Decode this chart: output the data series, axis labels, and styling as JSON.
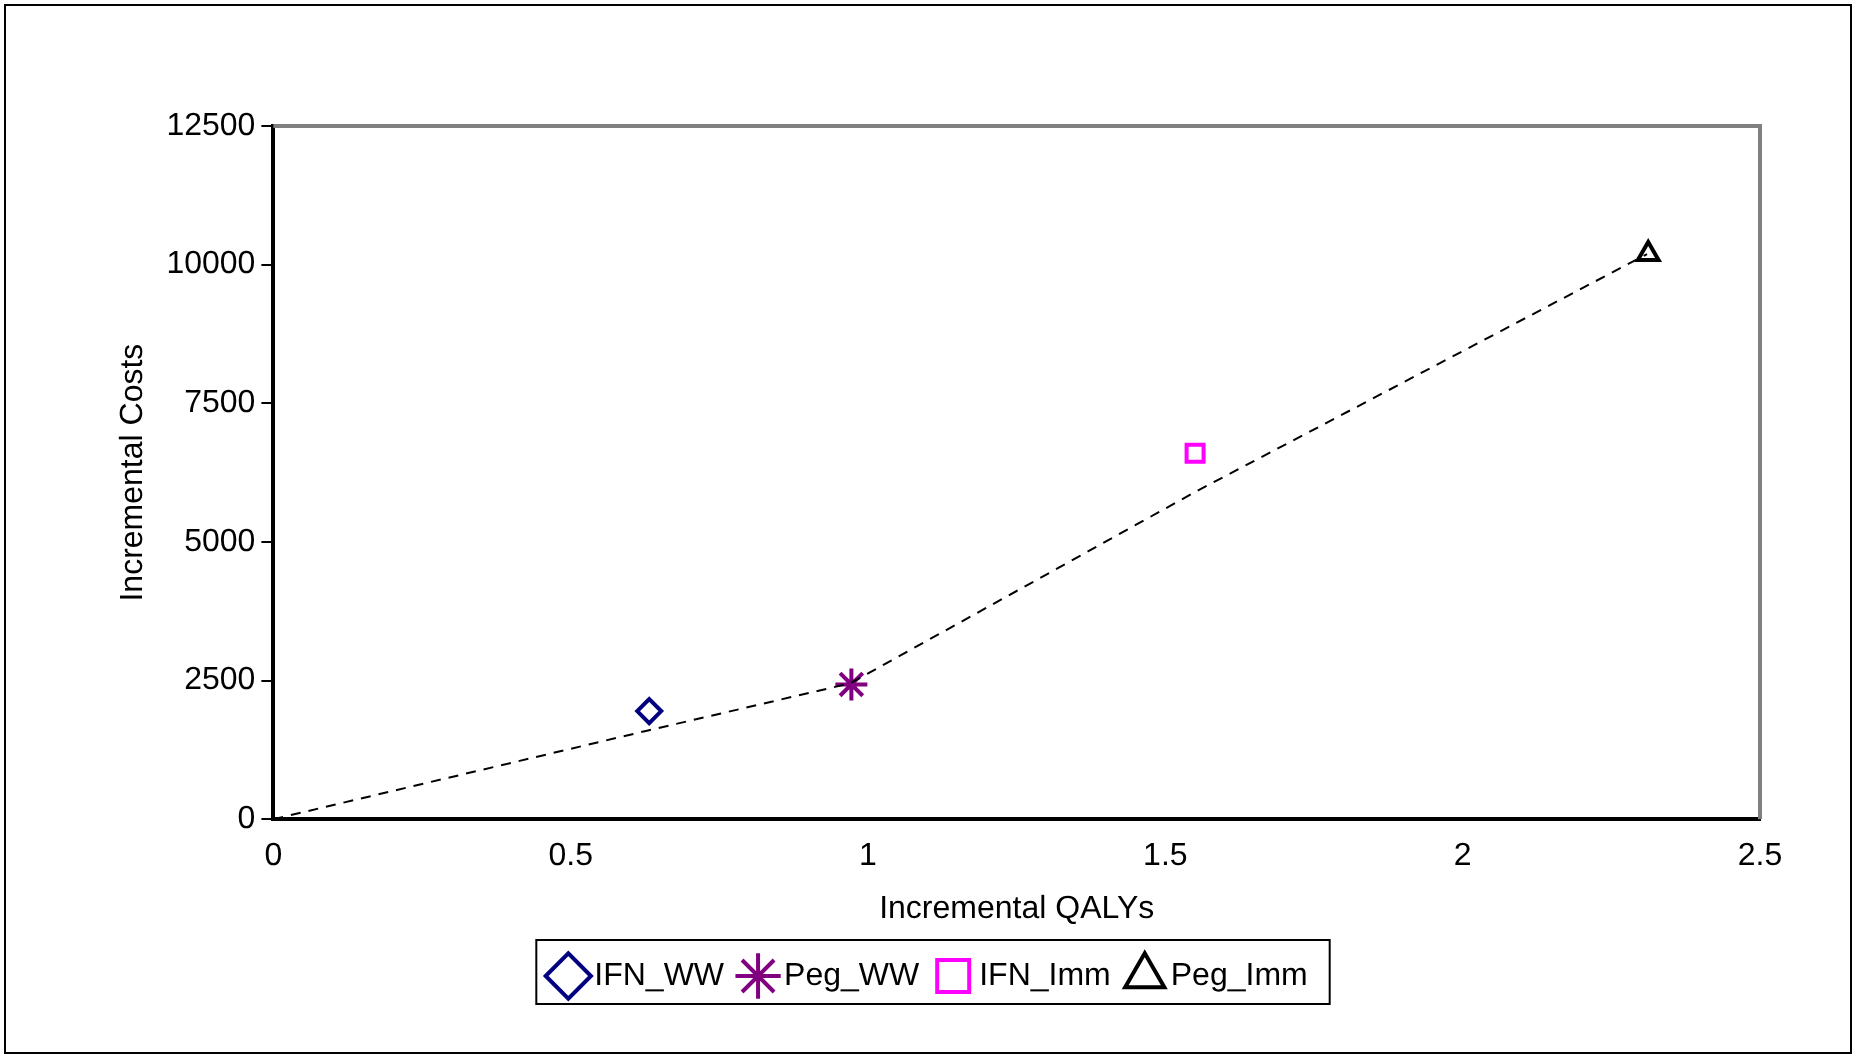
{
  "chart_data": {
    "type": "scatter",
    "xlabel": "Incremental QALYs",
    "ylabel": "Incremental Costs",
    "xlim": [
      0,
      2.5
    ],
    "xticks": [
      0,
      0.5,
      1,
      1.5,
      2,
      2.5
    ],
    "ylim": [
      0,
      12500
    ],
    "yticks": [
      0,
      2500,
      5000,
      7500,
      10000,
      12500
    ],
    "grid": false,
    "legend": "bottom",
    "series": [
      {
        "type": "line",
        "line_style": "dashed",
        "marker": "none",
        "color": "#000000",
        "x": [
          0,
          0.63,
          0.97,
          1.55,
          2.31
        ],
        "values": [
          0,
          1600,
          2450,
          5900,
          10190
        ]
      },
      {
        "name": "IFN_WW",
        "marker": "diamond",
        "color": "#000080",
        "x": [
          0.632
        ],
        "values": [
          1950
        ]
      },
      {
        "name": "Peg_WW",
        "marker": "cross",
        "color": "#800080",
        "x": [
          0.972
        ],
        "values": [
          2430
        ]
      },
      {
        "name": "IFN_Imm",
        "marker": "square",
        "color": "#ff00ff",
        "x": [
          1.55
        ],
        "values": [
          6600
        ]
      },
      {
        "name": "Peg_Imm",
        "marker": "triangle",
        "color": "#000000",
        "x": [
          2.312
        ],
        "values": [
          10190
        ]
      }
    ]
  }
}
